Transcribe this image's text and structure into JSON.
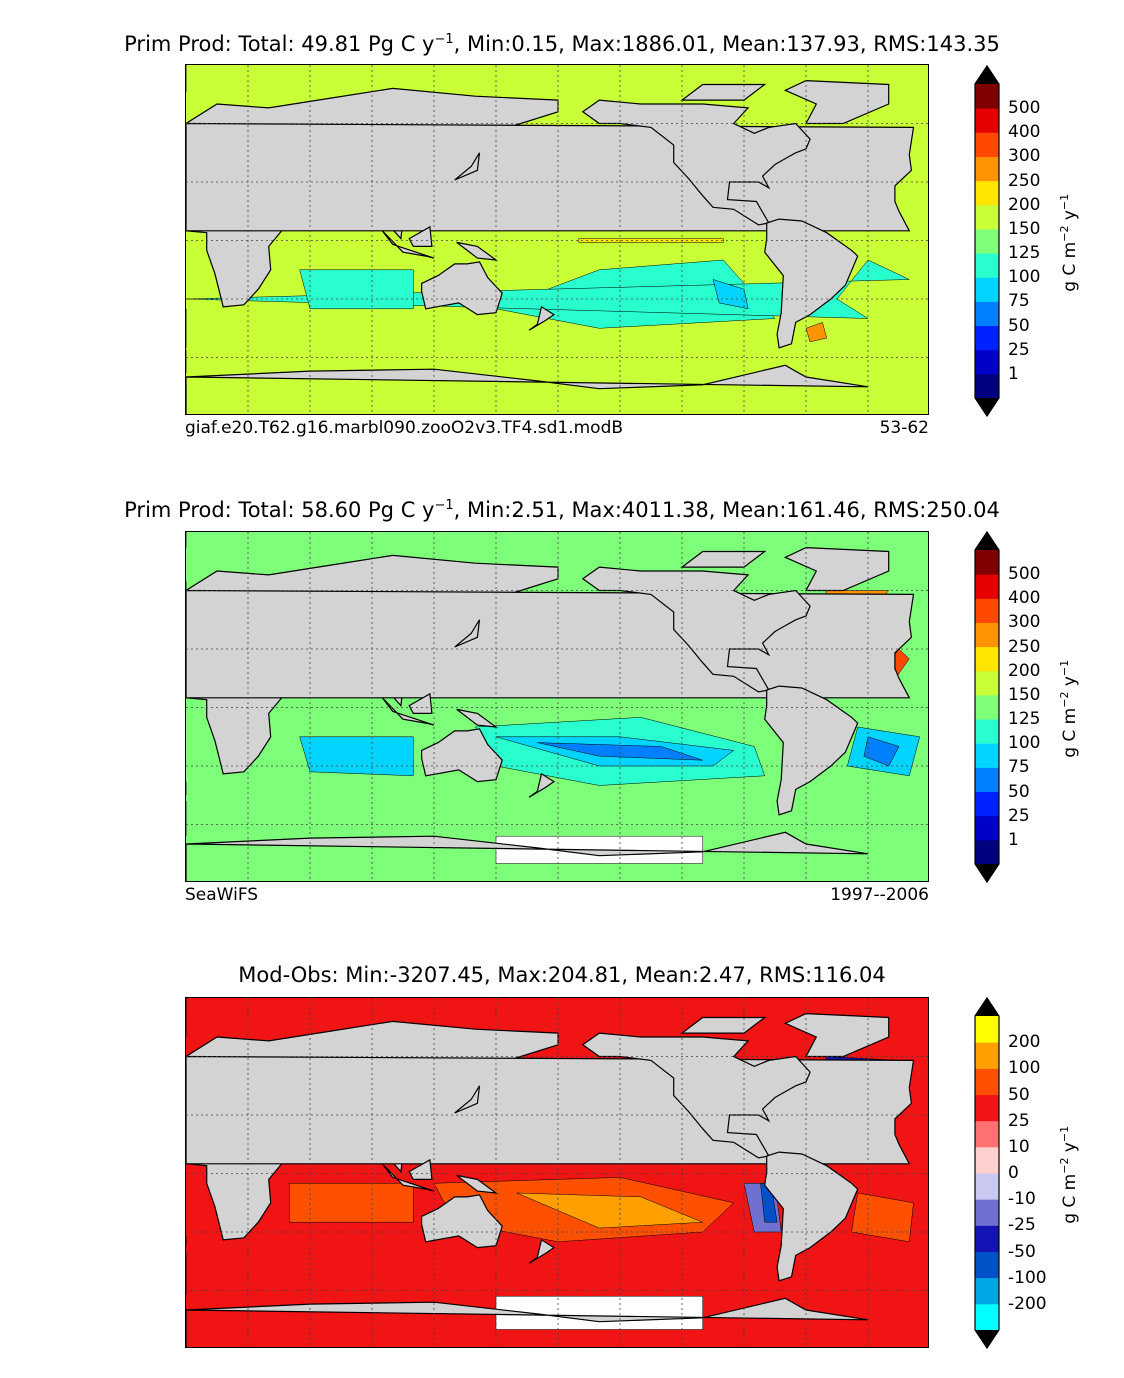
{
  "panels": [
    {
      "title_main": "Prim Prod: Total: 49.81 Pg C y",
      "title_exp": "−1",
      "title_rest": ", Min:0.15, Max:1886.01, Mean:137.93, RMS:143.35",
      "subtitle_left": "giaf.e20.T62.g16.marbl090.zooO2v3.TF4.sd1.modB",
      "subtitle_right": "53-62",
      "colorbar": {
        "ticks": [
          "1",
          "25",
          "50",
          "75",
          "100",
          "125",
          "150",
          "200",
          "250",
          "300",
          "400",
          "500"
        ],
        "colors": [
          "#00007f",
          "#0000c8",
          "#0022ff",
          "#0080ff",
          "#00d4ff",
          "#29ffce",
          "#7dff7a",
          "#c8ff37",
          "#ffe500",
          "#ff9400",
          "#ff4800",
          "#e60000",
          "#7f0000"
        ],
        "unit_main": "g C m",
        "unit_exp1": "−2",
        "unit_mid": " y",
        "unit_exp2": "−1"
      }
    },
    {
      "title_main": "Prim Prod: Total: 58.60 Pg C y",
      "title_exp": "−1",
      "title_rest": ", Min:2.51, Max:4011.38, Mean:161.46, RMS:250.04",
      "subtitle_left": "SeaWiFS",
      "subtitle_right": "1997--2006",
      "colorbar": {
        "ticks": [
          "1",
          "25",
          "50",
          "75",
          "100",
          "125",
          "150",
          "200",
          "250",
          "300",
          "400",
          "500"
        ],
        "colors": [
          "#00007f",
          "#0000c8",
          "#0022ff",
          "#0080ff",
          "#00d4ff",
          "#29ffce",
          "#7dff7a",
          "#c8ff37",
          "#ffe500",
          "#ff9400",
          "#ff4800",
          "#e60000",
          "#7f0000"
        ],
        "unit_main": "g C m",
        "unit_exp1": "−2",
        "unit_mid": " y",
        "unit_exp2": "−1"
      }
    },
    {
      "title_main": "Mod-Obs: Min:-3207.45, Max:204.81, Mean:2.47, RMS:116.04",
      "title_exp": "",
      "title_rest": "",
      "subtitle_left": "",
      "subtitle_right": "",
      "colorbar": {
        "ticks": [
          "-200",
          "-100",
          "-50",
          "-25",
          "-10",
          "0",
          "10",
          "25",
          "50",
          "100",
          "200"
        ],
        "colors": [
          "#00ffff",
          "#00a8e8",
          "#0050c8",
          "#1414b4",
          "#7070d0",
          "#c8c8f0",
          "#ffd0d0",
          "#ff7070",
          "#f01414",
          "#ff5000",
          "#ffa000",
          "#ffff00"
        ],
        "unit_main": "g C m",
        "unit_exp1": "−2",
        "unit_mid": " y",
        "unit_exp2": "−1"
      }
    }
  ]
}
